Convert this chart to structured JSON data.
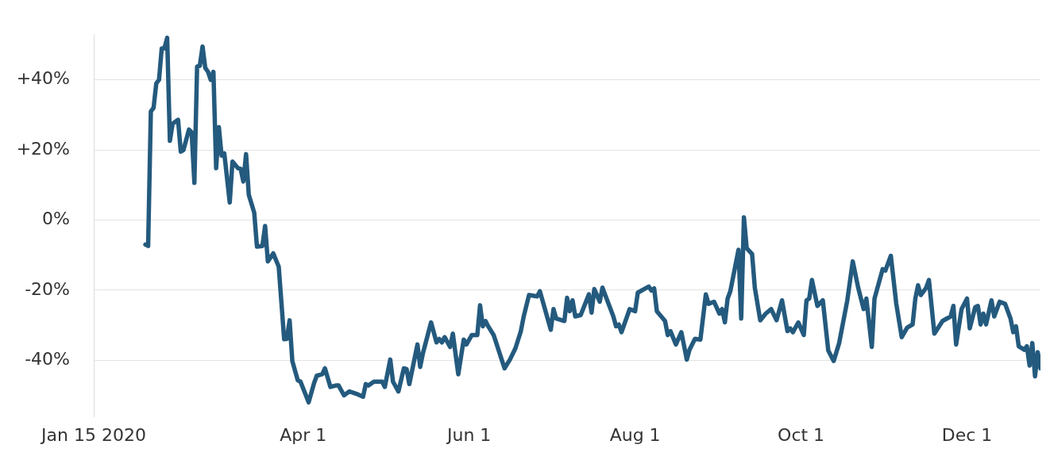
{
  "chart_data": {
    "type": "line",
    "x": [
      "2020-02-03",
      "2020-02-04",
      "2020-02-05",
      "2020-02-06",
      "2020-02-07",
      "2020-02-08",
      "2020-02-09",
      "2020-02-10",
      "2020-02-11",
      "2020-02-12",
      "2020-02-13",
      "2020-02-15",
      "2020-02-16",
      "2020-02-17",
      "2020-02-19",
      "2020-02-20",
      "2020-02-21",
      "2020-02-22",
      "2020-02-23",
      "2020-02-24",
      "2020-02-25",
      "2020-02-26",
      "2020-02-27",
      "2020-02-28",
      "2020-02-29",
      "2020-03-01",
      "2020-03-02",
      "2020-03-03",
      "2020-03-05",
      "2020-03-06",
      "2020-03-08",
      "2020-03-09",
      "2020-03-10",
      "2020-03-11",
      "2020-03-12",
      "2020-03-14",
      "2020-03-15",
      "2020-03-17",
      "2020-03-18",
      "2020-03-19",
      "2020-03-21",
      "2020-03-23",
      "2020-03-25",
      "2020-03-26",
      "2020-03-27",
      "2020-03-28",
      "2020-03-30",
      "2020-03-31",
      "2020-04-03",
      "2020-04-05",
      "2020-04-06",
      "2020-04-08",
      "2020-04-09",
      "2020-04-11",
      "2020-04-13",
      "2020-04-14",
      "2020-04-16",
      "2020-04-18",
      "2020-04-21",
      "2020-04-23",
      "2020-04-24",
      "2020-04-25",
      "2020-04-27",
      "2020-04-30",
      "2020-05-01",
      "2020-05-03",
      "2020-05-04",
      "2020-05-06",
      "2020-05-08",
      "2020-05-09",
      "2020-05-10",
      "2020-05-13",
      "2020-05-14",
      "2020-05-15",
      "2020-05-18",
      "2020-05-20",
      "2020-05-21",
      "2020-05-22",
      "2020-05-23",
      "2020-05-25",
      "2020-05-26",
      "2020-05-28",
      "2020-05-30",
      "2020-05-31",
      "2020-06-02",
      "2020-06-04",
      "2020-06-05",
      "2020-06-06",
      "2020-06-07",
      "2020-06-08",
      "2020-06-10",
      "2020-06-14",
      "2020-06-16",
      "2020-06-18",
      "2020-06-20",
      "2020-06-21",
      "2020-06-23",
      "2020-06-26",
      "2020-06-27",
      "2020-07-01",
      "2020-07-02",
      "2020-07-03",
      "2020-07-06",
      "2020-07-07",
      "2020-07-08",
      "2020-07-09",
      "2020-07-10",
      "2020-07-12",
      "2020-07-15",
      "2020-07-16",
      "2020-07-17",
      "2020-07-19",
      "2020-07-20",
      "2020-07-24",
      "2020-07-25",
      "2020-07-26",
      "2020-07-27",
      "2020-07-30",
      "2020-08-01",
      "2020-08-02",
      "2020-08-06",
      "2020-08-07",
      "2020-08-08",
      "2020-08-09",
      "2020-08-12",
      "2020-08-13",
      "2020-08-14",
      "2020-08-16",
      "2020-08-18",
      "2020-08-20",
      "2020-08-21",
      "2020-08-23",
      "2020-08-25",
      "2020-08-27",
      "2020-08-28",
      "2020-08-30",
      "2020-09-01",
      "2020-09-02",
      "2020-09-03",
      "2020-09-04",
      "2020-09-05",
      "2020-09-08",
      "2020-09-09",
      "2020-09-10",
      "2020-09-11",
      "2020-09-13",
      "2020-09-14",
      "2020-09-16",
      "2020-09-18",
      "2020-09-20",
      "2020-09-22",
      "2020-09-24",
      "2020-09-26",
      "2020-09-27",
      "2020-09-28",
      "2020-09-30",
      "2020-10-02",
      "2020-10-03",
      "2020-10-04",
      "2020-10-05",
      "2020-10-07",
      "2020-10-09",
      "2020-10-11",
      "2020-10-13",
      "2020-10-15",
      "2020-10-18",
      "2020-10-20",
      "2020-10-22",
      "2020-10-24",
      "2020-10-25",
      "2020-10-27",
      "2020-10-28",
      "2020-10-31",
      "2020-11-01",
      "2020-11-03",
      "2020-11-05",
      "2020-11-07",
      "2020-11-09",
      "2020-11-11",
      "2020-11-12",
      "2020-11-13",
      "2020-11-14",
      "2020-11-16",
      "2020-11-17",
      "2020-11-19",
      "2020-11-22",
      "2020-11-25",
      "2020-11-26",
      "2020-11-27",
      "2020-11-29",
      "2020-12-01",
      "2020-12-02",
      "2020-12-04",
      "2020-12-05",
      "2020-12-06",
      "2020-12-07",
      "2020-12-08",
      "2020-12-10",
      "2020-12-11",
      "2020-12-13",
      "2020-12-15",
      "2020-12-17",
      "2020-12-18",
      "2020-12-19",
      "2020-12-20",
      "2020-12-22",
      "2020-12-23",
      "2020-12-24",
      "2020-12-25",
      "2020-12-26",
      "2020-12-27",
      "2020-12-28"
    ],
    "series": [
      {
        "color": "#245a7e",
        "values": [
          -7,
          -7.4,
          31,
          32,
          39,
          40,
          49,
          49,
          52,
          22.6,
          27.5,
          28.6,
          19.5,
          20,
          25.8,
          25,
          10.6,
          43.8,
          44,
          49.5,
          43.4,
          42.3,
          40,
          42.3,
          14.8,
          26.5,
          18.4,
          19,
          5,
          16.7,
          14.8,
          14.6,
          11,
          18.8,
          7.2,
          2.1,
          -7.6,
          -7.4,
          -1.7,
          -11.8,
          -9.5,
          -13.3,
          -34,
          -33.9,
          -28.6,
          -40.2,
          -45.7,
          -46.1,
          -52,
          -46.5,
          -44.4,
          -44,
          -42.3,
          -47.6,
          -47.2,
          -47.2,
          -50,
          -48.9,
          -49.7,
          -50.4,
          -46.8,
          -47.2,
          -46.1,
          -46.1,
          -47.6,
          -39.8,
          -46.1,
          -48.9,
          -42.3,
          -42.5,
          -46.8,
          -35.5,
          -41.9,
          -38,
          -29.2,
          -34.9,
          -33.9,
          -34.9,
          -33.4,
          -36.2,
          -32.4,
          -44,
          -34.1,
          -35.5,
          -32.8,
          -32.8,
          -24.3,
          -30.3,
          -28.8,
          -30.3,
          -32.8,
          -42.3,
          -39.8,
          -36.6,
          -31.7,
          -27.7,
          -21.4,
          -21.8,
          -20.3,
          -31.3,
          -25.4,
          -28.1,
          -28.8,
          -22.2,
          -26,
          -22.9,
          -27.5,
          -27.1,
          -21.2,
          -26.4,
          -19.7,
          -23.3,
          -19.3,
          -27.5,
          -30.3,
          -29.8,
          -32,
          -25.4,
          -26,
          -20.7,
          -19,
          -20.1,
          -19.5,
          -26,
          -28.8,
          -32.8,
          -31.7,
          -35.5,
          -32,
          -39.8,
          -37,
          -33.9,
          -34.1,
          -21.2,
          -23.9,
          -23.3,
          -26.7,
          -25.4,
          -29.2,
          -22.4,
          -20.3,
          -8.5,
          -28.1,
          0.8,
          -8,
          -9.7,
          -19.3,
          -28.6,
          -26.7,
          -25.4,
          -28.6,
          -22.9,
          -31.7,
          -30.9,
          -32,
          -29.2,
          -32.8,
          -22.9,
          -22.4,
          -17.1,
          -24.5,
          -22.9,
          -37.2,
          -40.2,
          -35.1,
          -22.9,
          -11.8,
          -19.3,
          -25.4,
          -22.4,
          -36.2,
          -22.4,
          -14,
          -14.4,
          -10.2,
          -23.9,
          -33.4,
          -30.7,
          -29.8,
          -22.4,
          -18.6,
          -21.4,
          -19.3,
          -17.1,
          -32.4,
          -28.8,
          -27.5,
          -24.5,
          -35.5,
          -25.4,
          -22.4,
          -30.9,
          -24.9,
          -24.5,
          -29.8,
          -26.7,
          -29.8,
          -22.9,
          -27.5,
          -23.3,
          -23.9,
          -28.1,
          -32,
          -30.3,
          -36,
          -37,
          -36,
          -41.5,
          -35.1,
          -44.6,
          -37.7,
          -42.3
        ]
      }
    ],
    "xlim": [
      "2020-01-15",
      "2020-12-28"
    ],
    "xticks": [
      {
        "value": "2020-01-15",
        "label": "Jan 15 2020"
      },
      {
        "value": "2020-04-01",
        "label": "Apr 1"
      },
      {
        "value": "2020-06-01",
        "label": "Jun 1"
      },
      {
        "value": "2020-08-01",
        "label": "Aug 1"
      },
      {
        "value": "2020-10-01",
        "label": "Oct 1"
      },
      {
        "value": "2020-12-01",
        "label": "Dec 1"
      }
    ],
    "ylim": [
      -56,
      53
    ],
    "yticks": [
      {
        "value": -40,
        "label": "-40%"
      },
      {
        "value": -20,
        "label": "-20%"
      },
      {
        "value": 0,
        "label": "0%"
      },
      {
        "value": 20,
        "label": "+20%"
      },
      {
        "value": 40,
        "label": "+40%"
      }
    ],
    "grid": "y",
    "marker": "none",
    "line_style": "solid",
    "legend": false
  }
}
